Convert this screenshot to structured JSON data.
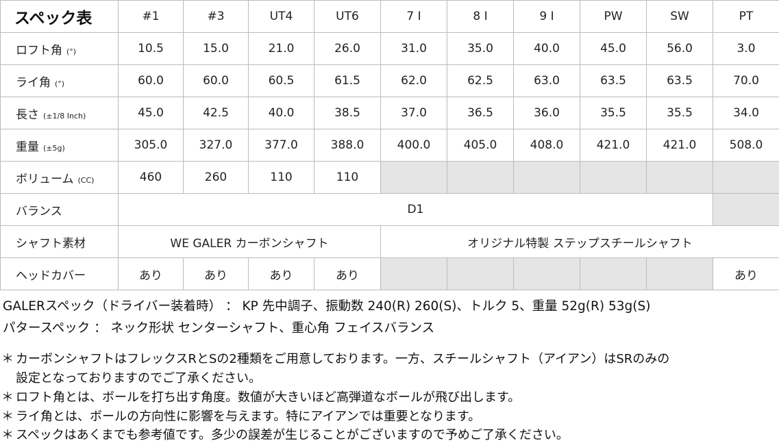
{
  "table": {
    "title": "スペック表",
    "columns": [
      "#1",
      "#3",
      "UT4",
      "UT6",
      "7 I",
      "8 I",
      "9 I",
      "PW",
      "SW",
      "PT"
    ],
    "rows": [
      {
        "label": "ロフト角",
        "unit": "(°)",
        "values": [
          "10.5",
          "15.0",
          "21.0",
          "26.0",
          "31.0",
          "35.0",
          "40.0",
          "45.0",
          "56.0",
          "3.0"
        ]
      },
      {
        "label": "ライ角",
        "unit": "(°)",
        "values": [
          "60.0",
          "60.0",
          "60.5",
          "61.5",
          "62.0",
          "62.5",
          "63.0",
          "63.5",
          "63.5",
          "70.0"
        ]
      },
      {
        "label": "長さ",
        "unit": "(±1/8 Inch)",
        "values": [
          "45.0",
          "42.5",
          "40.0",
          "38.5",
          "37.0",
          "36.5",
          "36.0",
          "35.5",
          "35.5",
          "34.0"
        ]
      },
      {
        "label": "重量",
        "unit": "(±5g)",
        "values": [
          "305.0",
          "327.0",
          "377.0",
          "388.0",
          "400.0",
          "405.0",
          "408.0",
          "421.0",
          "421.0",
          "508.0"
        ]
      },
      {
        "label": "ボリューム",
        "unit": "(CC)",
        "values": [
          "460",
          "260",
          "110",
          "110"
        ]
      },
      {
        "label": "バランス",
        "value": "D1"
      },
      {
        "label": "シャフト素材",
        "carbon": "WE GALER カーボンシャフト",
        "steel": "オリジナル特製 ステップスチールシャフト"
      },
      {
        "label": "ヘッドカバー",
        "values": [
          "あり",
          "あり",
          "あり",
          "あり",
          "",
          "",
          "",
          "",
          "",
          "あり"
        ]
      }
    ]
  },
  "specs": [
    "GALERスペック（ドライバー装着時） ： KP 先中調子、振動数 240(R) 260(S)、トルク 5、重量 52g(R) 53g(S)",
    "パタースペック ： ネック形状 センターシャフト、重心角 フェイスバランス"
  ],
  "notes": {
    "marker": "＊",
    "red_line1": "カーボンシャフトはフレックスRとSの2種類をご用意しております。一方、スチールシャフト（アイアン）はSRのみの",
    "red_line2": "設定となっておりますのでご了承ください。",
    "items": [
      "ロフト角とは、ボールを打ち出す角度。数値が大きいほど高弾道なボールが飛び出します。",
      "ライ角とは、ボールの方向性に影響を与えます。特にアイアンでは重要となります。",
      "スペックはあくまでも参考値です。多少の誤差が生じることがございますので予めご了承ください。"
    ]
  },
  "colors": {
    "note_red": "#d40000",
    "empty_cell": "#e5e5e5"
  }
}
